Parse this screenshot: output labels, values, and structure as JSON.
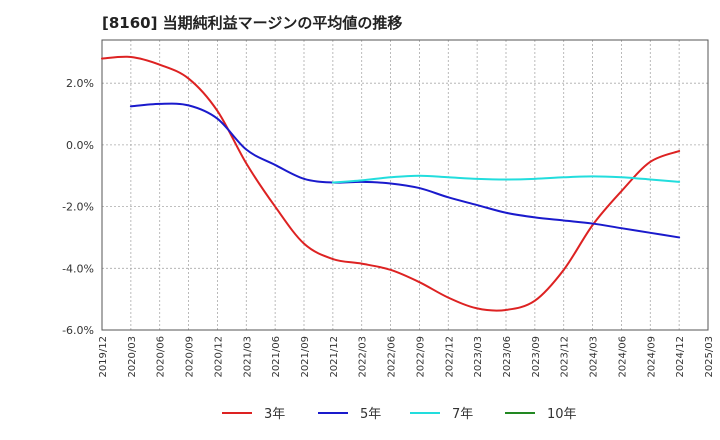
{
  "chart_data": {
    "type": "line",
    "title": "[8160]  当期純利益マージンの平均値の推移",
    "xlabel": "",
    "ylabel": "",
    "x_tick_labels": [
      "2019/12",
      "2020/03",
      "2020/06",
      "2020/09",
      "2020/12",
      "2021/03",
      "2021/06",
      "2021/09",
      "2021/12",
      "2022/03",
      "2022/06",
      "2022/09",
      "2022/12",
      "2023/03",
      "2023/06",
      "2023/09",
      "2023/12",
      "2024/03",
      "2024/06",
      "2024/09",
      "2024/12",
      "2025/03"
    ],
    "y_tick_labels": [
      "2.0%",
      "0.0%",
      "-2.0%",
      "-4.0%",
      "-6.0%"
    ],
    "y_ticks": [
      2.0,
      0.0,
      -2.0,
      -4.0,
      -6.0
    ],
    "ylim": [
      -6.0,
      3.4
    ],
    "grid": true,
    "legend_position": "bottom",
    "series": [
      {
        "name": "3年",
        "color": "#dd2222",
        "x": [
          "2019/12",
          "2020/03",
          "2020/06",
          "2020/09",
          "2020/12",
          "2021/03",
          "2021/06",
          "2021/09",
          "2021/12",
          "2022/03",
          "2022/06",
          "2022/09",
          "2022/12",
          "2023/03",
          "2023/06",
          "2023/09",
          "2023/12",
          "2024/03",
          "2024/06",
          "2024/09",
          "2024/12"
        ],
        "values": [
          2.8,
          2.85,
          2.6,
          2.15,
          1.1,
          -0.6,
          -2.0,
          -3.2,
          -3.7,
          -3.85,
          -4.05,
          -4.45,
          -4.95,
          -5.3,
          -5.35,
          -5.05,
          -4.05,
          -2.6,
          -1.5,
          -0.55,
          -0.2
        ]
      },
      {
        "name": "5年",
        "color": "#1a1acc",
        "x": [
          "2020/03",
          "2020/06",
          "2020/09",
          "2020/12",
          "2021/03",
          "2021/06",
          "2021/09",
          "2021/12",
          "2022/03",
          "2022/06",
          "2022/09",
          "2022/12",
          "2023/03",
          "2023/06",
          "2023/09",
          "2023/12",
          "2024/03",
          "2024/06",
          "2024/09",
          "2024/12"
        ],
        "values": [
          1.25,
          1.33,
          1.28,
          0.85,
          -0.15,
          -0.65,
          -1.1,
          -1.22,
          -1.2,
          -1.25,
          -1.4,
          -1.7,
          -1.95,
          -2.2,
          -2.35,
          -2.45,
          -2.55,
          -2.7,
          -2.85,
          -3.0
        ]
      },
      {
        "name": "7年",
        "color": "#22dddd",
        "x": [
          "2021/12",
          "2022/03",
          "2022/06",
          "2022/09",
          "2022/12",
          "2023/03",
          "2023/06",
          "2023/09",
          "2023/12",
          "2024/03",
          "2024/06",
          "2024/09",
          "2024/12"
        ],
        "values": [
          -1.22,
          -1.15,
          -1.05,
          -1.0,
          -1.05,
          -1.1,
          -1.12,
          -1.1,
          -1.05,
          -1.02,
          -1.05,
          -1.12,
          -1.2
        ]
      },
      {
        "name": "10年",
        "color": "#228822",
        "x": [],
        "values": []
      }
    ]
  }
}
